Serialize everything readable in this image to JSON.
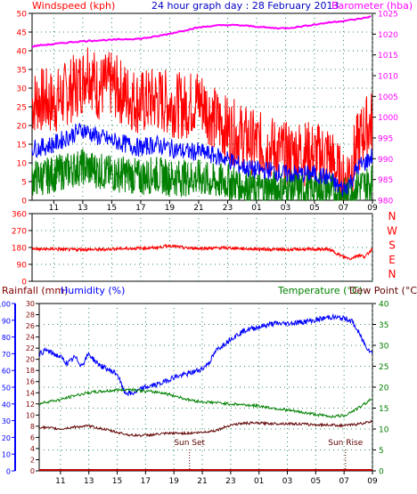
{
  "chart_data": [
    {
      "type": "line",
      "name": "wind-barometer",
      "title": "24 hour graph day : 28 February 2013",
      "left_axis_label": "Windspeed (kph)",
      "right_axis_label": "Barometer (hba)",
      "left_ylim": [
        0,
        50
      ],
      "left_ticks": [
        0,
        5,
        10,
        15,
        20,
        25,
        30,
        35,
        40,
        45,
        50
      ],
      "right_ylim": [
        980,
        1025
      ],
      "right_ticks": [
        980,
        985,
        990,
        995,
        1000,
        1005,
        1010,
        1015,
        1020,
        1025
      ],
      "x_ticks": [
        "11",
        "13",
        "15",
        "17",
        "19",
        "21",
        "23",
        "01",
        "03",
        "05",
        "07",
        "09"
      ],
      "grid": true,
      "colors": {
        "gust": "#ff0000",
        "average": "#0000ff",
        "speed": "#008000",
        "barometer": "#ff00ff",
        "left_axis": "#ff0000",
        "right_axis": "#ff00ff",
        "title": "#0000c0"
      },
      "series": [
        {
          "key": "gust",
          "x": [
            9.5,
            10,
            11,
            12,
            13,
            13.3,
            14,
            15,
            16,
            17,
            18,
            19,
            20,
            21,
            21.5,
            22,
            23,
            24,
            25,
            26,
            27,
            28,
            29,
            30,
            30.5,
            31,
            31.5,
            32,
            32.5,
            33
          ],
          "values": [
            26,
            27,
            26,
            29,
            32,
            36,
            30,
            31,
            28,
            26,
            27,
            26,
            25,
            27,
            25,
            22,
            19,
            17,
            15,
            14,
            12,
            13,
            12,
            12,
            8,
            4,
            9,
            15,
            19,
            21
          ]
        },
        {
          "key": "average",
          "x": [
            9.5,
            10,
            11,
            12,
            13,
            14,
            15,
            16,
            17,
            18,
            19,
            20,
            21,
            22,
            23,
            24,
            25,
            26,
            27,
            28,
            29,
            30,
            30.5,
            31,
            31.5,
            32,
            32.5,
            33
          ],
          "values": [
            14,
            14,
            15,
            17,
            19,
            17,
            16,
            15,
            14,
            15,
            14,
            13,
            13,
            12,
            11,
            9,
            8,
            8,
            7,
            7,
            7,
            6,
            4,
            3,
            5,
            9,
            10,
            12
          ]
        },
        {
          "key": "speed",
          "x": [
            9.5,
            10,
            11,
            12,
            13,
            14,
            15,
            16,
            17,
            18,
            19,
            20,
            21,
            22,
            23,
            24,
            25,
            26,
            27,
            28,
            29,
            30,
            30.5,
            31,
            31.5,
            32,
            32.5,
            33
          ],
          "values": [
            6,
            6,
            7,
            8,
            9,
            8,
            7,
            7,
            6,
            7,
            6,
            6,
            6,
            5,
            5,
            4,
            3,
            3,
            3,
            3,
            3,
            3,
            2,
            1,
            2,
            4,
            4,
            5
          ]
        },
        {
          "key": "barometer",
          "axis": "right",
          "x": [
            9.5,
            10,
            11,
            12,
            13,
            14,
            15,
            16,
            17,
            18,
            19,
            20,
            21,
            22,
            23,
            24,
            25,
            26,
            27,
            28,
            29,
            30,
            31,
            32,
            33
          ],
          "values": [
            1017,
            1017.3,
            1017.6,
            1018,
            1018.3,
            1018.5,
            1018.6,
            1018.8,
            1018.9,
            1019.4,
            1020.1,
            1020.9,
            1021.6,
            1022,
            1022.2,
            1022.1,
            1021.8,
            1021.5,
            1021.4,
            1021.8,
            1022.3,
            1022.8,
            1023.2,
            1023.6,
            1024.3
          ]
        }
      ]
    },
    {
      "type": "line",
      "name": "wind-direction",
      "left_ylim": [
        0,
        360
      ],
      "left_ticks": [
        0,
        90,
        180,
        270,
        360
      ],
      "compass_labels": [
        "N",
        "W",
        "S",
        "E",
        "N"
      ],
      "x_ticks": [
        "11",
        "13",
        "15",
        "17",
        "19",
        "21",
        "23",
        "01",
        "03",
        "05",
        "07",
        "09"
      ],
      "grid": true,
      "colors": {
        "direction": "#ff0000",
        "compass": "#ff0000"
      },
      "series": [
        {
          "key": "direction",
          "x": [
            9.5,
            10,
            11,
            12,
            13,
            14,
            15,
            16,
            17,
            18,
            19,
            20,
            21,
            22,
            23,
            24,
            25,
            26,
            27,
            28,
            29,
            30,
            30.5,
            31,
            31.5,
            32,
            32.5,
            33
          ],
          "values": [
            175,
            170,
            172,
            168,
            170,
            168,
            172,
            174,
            176,
            178,
            190,
            178,
            175,
            176,
            178,
            174,
            172,
            170,
            168,
            170,
            170,
            170,
            150,
            130,
            120,
            140,
            130,
            175
          ]
        }
      ]
    },
    {
      "type": "line",
      "name": "rain-humidity-temperature",
      "rain_label": "Rainfall (mm)",
      "humidity_label": "Humidity (%)",
      "temperature_label": "Temperature (°C)",
      "dewpoint_label": "Dew Point (°C)",
      "humidity_ticks": [
        0,
        10,
        20,
        30,
        40,
        50,
        60,
        70,
        80,
        90,
        100
      ],
      "rain_ticks": [
        0,
        2,
        4,
        6,
        8,
        10,
        12,
        14,
        16,
        18,
        20,
        22,
        24,
        26,
        28,
        30
      ],
      "temp_ticks": [
        0,
        5,
        10,
        15,
        20,
        25,
        30,
        35,
        40
      ],
      "humidity_ylim": [
        0,
        100
      ],
      "rain_ylim": [
        0,
        30
      ],
      "temp_ylim": [
        0,
        40
      ],
      "x_ticks": [
        "11",
        "13",
        "15",
        "17",
        "19",
        "21",
        "23",
        "01",
        "03",
        "05",
        "07",
        "09"
      ],
      "grid": true,
      "annotations": [
        {
          "text": "Sun Set",
          "x": 20.1
        },
        {
          "text": "Sun Rise",
          "x": 31.1
        }
      ],
      "colors": {
        "humidity": "#0000ff",
        "temperature": "#008000",
        "dewpoint": "#600000",
        "rain": "#c00000",
        "rain_axis": "#800000",
        "humidity_axis": "#0000ff",
        "temp_axis": "#008000"
      },
      "series": [
        {
          "key": "humidity",
          "axis": "humidity",
          "x": [
            9.5,
            10,
            11,
            11.5,
            12,
            12.5,
            13,
            13.5,
            14,
            15,
            15.5,
            16,
            17,
            18,
            19,
            20,
            21,
            21.5,
            22,
            23,
            24,
            25,
            26,
            27,
            28,
            29,
            30,
            31,
            31.5,
            32,
            32.5,
            33
          ],
          "values": [
            70,
            72,
            68,
            64,
            68,
            63,
            70,
            65,
            62,
            58,
            47,
            46,
            50,
            52,
            56,
            58,
            61,
            65,
            72,
            79,
            84,
            86,
            88,
            88,
            89,
            90,
            92,
            91,
            90,
            83,
            75,
            70
          ]
        },
        {
          "key": "temperature",
          "axis": "temp",
          "x": [
            9.5,
            10,
            11,
            12,
            13,
            14,
            15,
            16,
            17,
            18,
            19,
            20,
            21,
            22,
            23,
            24,
            25,
            26,
            27,
            28,
            29,
            30,
            31,
            32,
            33
          ],
          "values": [
            16,
            16.5,
            17,
            18,
            18.7,
            19,
            19.3,
            19.5,
            19,
            18.8,
            18,
            17,
            16.5,
            16.3,
            16,
            15.8,
            15.5,
            15,
            14.5,
            14,
            13.5,
            13,
            13.2,
            15,
            17.3
          ]
        },
        {
          "key": "dewpoint",
          "axis": "temp",
          "x": [
            9.5,
            10,
            11,
            12,
            13,
            14,
            15,
            16,
            17,
            18,
            19,
            20,
            21,
            22,
            23,
            24,
            25,
            26,
            27,
            28,
            29,
            30,
            31,
            32,
            33
          ],
          "values": [
            10.5,
            10.3,
            10,
            10.5,
            10.7,
            10,
            9.2,
            8.5,
            8.5,
            8.8,
            9,
            9,
            9.2,
            9.7,
            11,
            11.4,
            11.4,
            11.3,
            11.3,
            11.2,
            11,
            11,
            10.8,
            11.2,
            11.8
          ]
        },
        {
          "key": "rain",
          "axis": "rain",
          "x": [
            9.5,
            33
          ],
          "values": [
            0,
            0
          ]
        }
      ]
    }
  ]
}
